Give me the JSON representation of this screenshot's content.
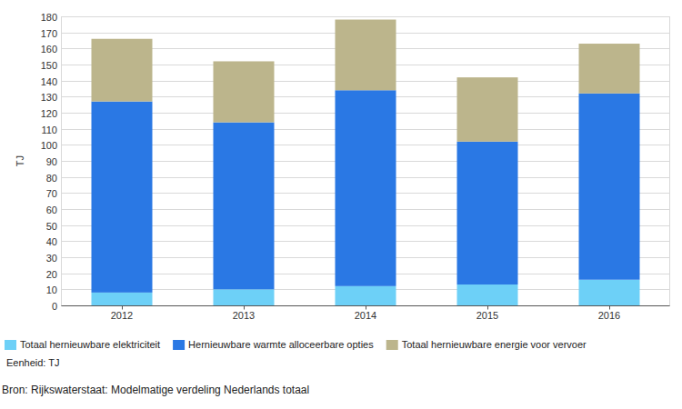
{
  "chart_data": {
    "type": "bar",
    "stacked": true,
    "grid": true,
    "legend": "bottom-left",
    "y_label": "TJ",
    "categories": [
      "2012",
      "2013",
      "2014",
      "2015",
      "2016"
    ],
    "series": [
      {
        "name": "Totaal hernieuwbare elektriciteit",
        "color": "#6dd0f7",
        "values": [
          8,
          10,
          12,
          13,
          16
        ]
      },
      {
        "name": "Hernieuwbare warmte alloceerbare opties",
        "color": "#2a78e4",
        "values": [
          119,
          104,
          122,
          89,
          116
        ]
      },
      {
        "name": "Totaal hernieuwbare energie voor vervoer",
        "color": "#bcb58c",
        "values": [
          39,
          38,
          44,
          40,
          31
        ]
      }
    ],
    "ylim": [
      0,
      180
    ],
    "yticks": [
      0,
      10,
      20,
      30,
      40,
      50,
      60,
      70,
      80,
      90,
      100,
      110,
      120,
      130,
      140,
      150,
      160,
      170,
      180
    ],
    "annotations": [
      "Eenheid: TJ",
      "Bron: Rijkswaterstaat: Modelmatige verdeling Nederlands totaal"
    ]
  }
}
